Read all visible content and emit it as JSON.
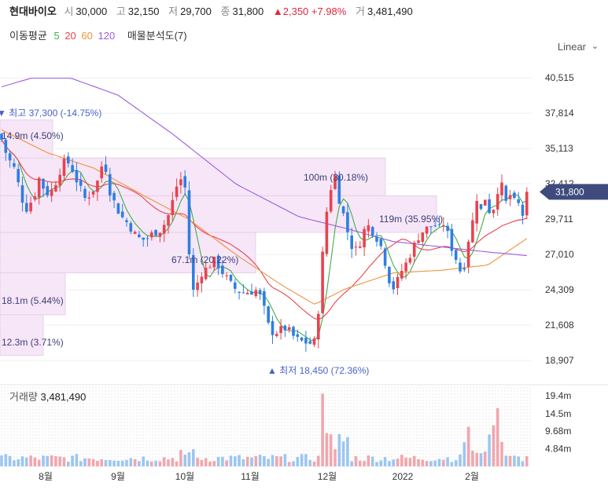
{
  "stock": {
    "name": "현대바이오",
    "open_label": "시",
    "open": "30,000",
    "high_label": "고",
    "high": "32,150",
    "low_label": "저",
    "low": "29,700",
    "close_label": "종",
    "close": "31,800",
    "change": "▲2,350 +7.98%",
    "volume_label": "거",
    "volume": "3,481,490"
  },
  "indicators": {
    "ma_label": "이동평균",
    "ma": [
      {
        "label": "5",
        "color": "#3fae49"
      },
      {
        "label": "20",
        "color": "#e8434f"
      },
      {
        "label": "60",
        "color": "#f0923a"
      },
      {
        "label": "120",
        "color": "#9c5de0"
      }
    ],
    "vp_label": "매물분석도(7)"
  },
  "scale_label": "Linear",
  "chart_data": {
    "type": "candlestick",
    "price_axis": {
      "ticks": [
        40515,
        37814,
        35113,
        32412,
        29711,
        27010,
        24309,
        21608,
        18907
      ],
      "ylim": [
        17650,
        41550
      ]
    },
    "tick_labels": [
      "40,515",
      "37,814",
      "35,113",
      "32,412",
      "29,711",
      "27,010",
      "24,309",
      "21,608",
      "18,907"
    ],
    "current_price": "31,800",
    "volume_axis": {
      "ticks": [
        "19.4m",
        "14.5m",
        "9.68m",
        "4.84m"
      ],
      "values": [
        19.4,
        14.5,
        9.68,
        4.84
      ]
    },
    "volume_title": "거래량",
    "volume_value": "3,481,490",
    "x_labels": [
      "8월",
      "9월",
      "10월",
      "11월",
      "12월",
      "2022",
      "2월"
    ],
    "annotations": {
      "high": "▼ 최고 37,300 (-14.75%)",
      "low": "▲ 최저 18,450 (72.36%)"
    },
    "volume_profile": [
      {
        "label": "14.9m (4.50%)"
      },
      {
        "label": "100m (30.18%)"
      },
      {
        "label": "119m (35.95%)"
      },
      {
        "label": "67.1m (20.22%)"
      },
      {
        "label": "18.1m (5.44%)"
      },
      {
        "label": "12.3m (3.71%)"
      }
    ]
  }
}
